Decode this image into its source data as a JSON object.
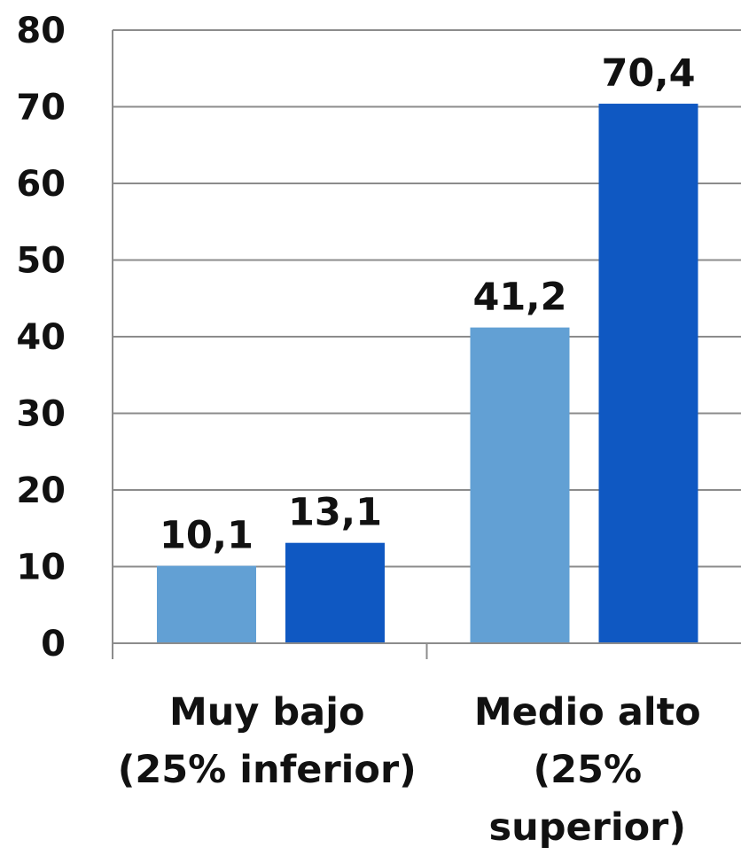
{
  "chart_data": {
    "type": "bar",
    "categories": [
      [
        "Muy bajo",
        "(25% inferior)"
      ],
      [
        "Medio alto",
        "(25%",
        "superior)"
      ]
    ],
    "series": [
      {
        "values": [
          10.1,
          41.2
        ],
        "labels": [
          "10,1",
          "41,2"
        ],
        "color": "#62a0d4"
      },
      {
        "values": [
          13.1,
          70.4
        ],
        "labels": [
          "13,1",
          "70,4"
        ],
        "color": "#0f58c2"
      }
    ],
    "ylim": [
      0,
      80
    ],
    "yticks": [
      0,
      10,
      20,
      30,
      40,
      50,
      60,
      70,
      80
    ],
    "grid": true,
    "legend": "none"
  }
}
